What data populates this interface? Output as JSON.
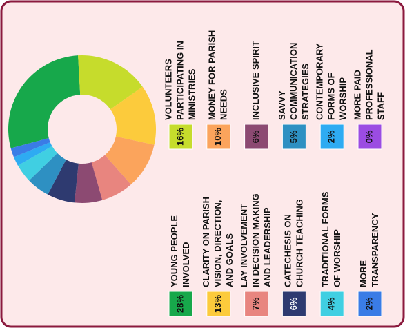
{
  "chart_data": {
    "type": "donut",
    "categories": [
      [
        "YOUNG PEOPLE",
        "INVOLVED"
      ],
      [
        "VOLUNTEERS",
        "PARTICIPATING IN",
        "MINISTRIES"
      ],
      [
        "CLARITY ON PARISH",
        "VISION, DIRECTION,",
        "AND GOALS"
      ],
      [
        "MONEY FOR PARISH",
        "NEEDS"
      ],
      [
        "LAY INVOLVEMENT",
        "IN DECISION MAKING",
        "AND LEADERSHIP"
      ],
      [
        "INCLUSIVE SPIRIT"
      ],
      [
        "CATECHESIS ON",
        "CHURCH TEACHING"
      ],
      [
        "SAVVY",
        "COMMUNICATION",
        "STRATEGIES"
      ],
      [
        "TRADITIONAL FORMS",
        "OF WORSHIP"
      ],
      [
        "CONTEMPORARY",
        "FORMS OF",
        "WORSHIP"
      ],
      [
        "MORE",
        "TRANSPARENCY"
      ],
      [
        "MORE PAID",
        "PROFESSIONAL",
        "STAFF"
      ]
    ],
    "values": [
      28,
      16,
      13,
      10,
      7,
      6,
      6,
      5,
      4,
      2,
      2,
      0
    ],
    "value_labels": [
      "28%",
      "16%",
      "13%",
      "10%",
      "7%",
      "6%",
      "6%",
      "5%",
      "4%",
      "2%",
      "2%",
      "0%"
    ],
    "colors": [
      "#17a84b",
      "#c6dc2c",
      "#fccb3c",
      "#fba45c",
      "#e8857f",
      "#8c4a72",
      "#2e3a70",
      "#2e90c2",
      "#40cfe2",
      "#2eabf2",
      "#3a7ce6",
      "#9b4ce2"
    ]
  }
}
